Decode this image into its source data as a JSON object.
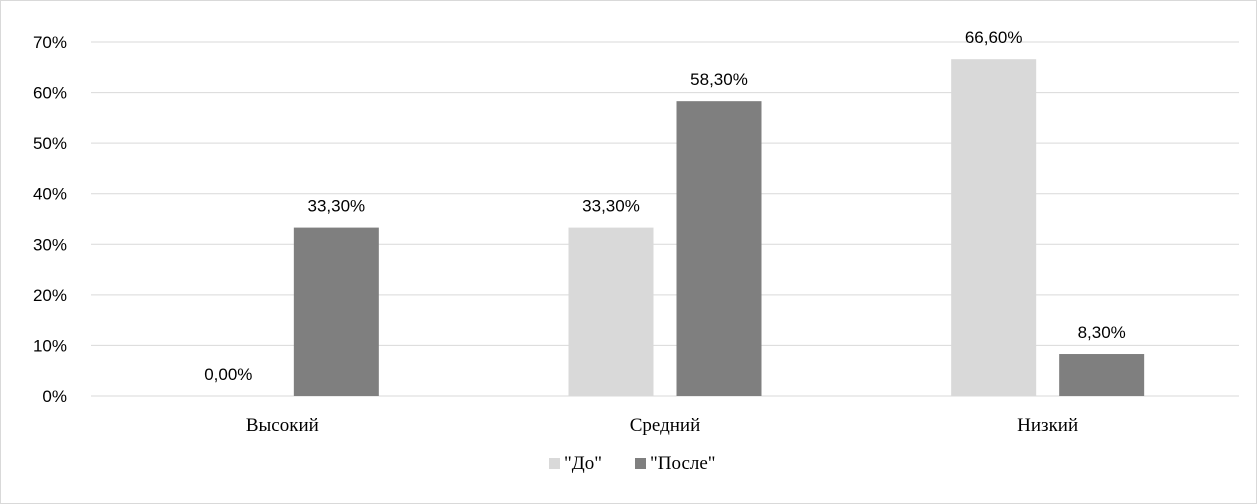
{
  "chart_data": {
    "type": "bar",
    "categories": [
      "Высокий",
      "Средний",
      "Низкий"
    ],
    "series": [
      {
        "name": "\"До\"",
        "values": [
          0.0,
          33.3,
          66.6
        ],
        "labels": [
          "0,00%",
          "33,30%",
          "66,60%"
        ],
        "color": "#d9d9d9"
      },
      {
        "name": "\"После\"",
        "values": [
          33.3,
          58.3,
          8.3
        ],
        "labels": [
          "33,30%",
          "58,30%",
          "8,30%"
        ],
        "color": "#7f7f7f"
      }
    ],
    "ylim": [
      0,
      70
    ],
    "yticks": [
      0,
      10,
      20,
      30,
      40,
      50,
      60,
      70
    ],
    "ytick_labels": [
      "0%",
      "10%",
      "20%",
      "30%",
      "40%",
      "50%",
      "60%",
      "70%"
    ],
    "grid": true,
    "gridline_color": "#d9d9d9",
    "legend_position": "bottom"
  }
}
